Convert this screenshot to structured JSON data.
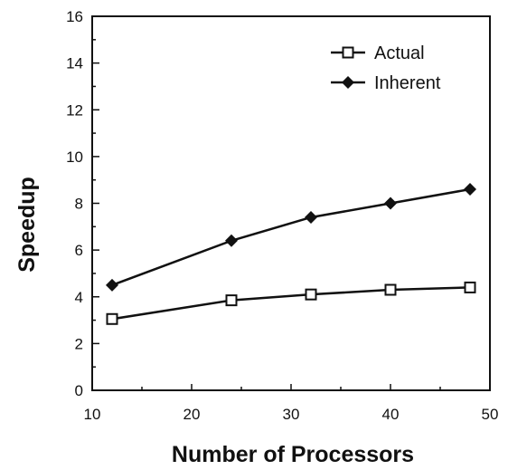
{
  "chart_data": {
    "type": "line",
    "xlabel": "Number of Processors",
    "ylabel": "Speedup",
    "xlim": [
      10,
      50
    ],
    "ylim": [
      0,
      16
    ],
    "xticks": [
      "10",
      "20",
      "30",
      "40",
      "50"
    ],
    "yticks": [
      "0",
      "2",
      "4",
      "6",
      "8",
      "10",
      "12",
      "14",
      "16"
    ],
    "grid": false,
    "legend_position": "top-right",
    "series": [
      {
        "name": "Actual",
        "marker": "open-square",
        "x": [
          12,
          24,
          32,
          40,
          48
        ],
        "y": [
          3.05,
          3.85,
          4.1,
          4.3,
          4.4
        ]
      },
      {
        "name": "Inherent",
        "marker": "filled-diamond",
        "x": [
          12,
          24,
          32,
          40,
          48
        ],
        "y": [
          4.5,
          6.4,
          7.4,
          8.0,
          8.6
        ]
      }
    ],
    "colors": {
      "line": "#111111",
      "background": "#ffffff"
    }
  }
}
